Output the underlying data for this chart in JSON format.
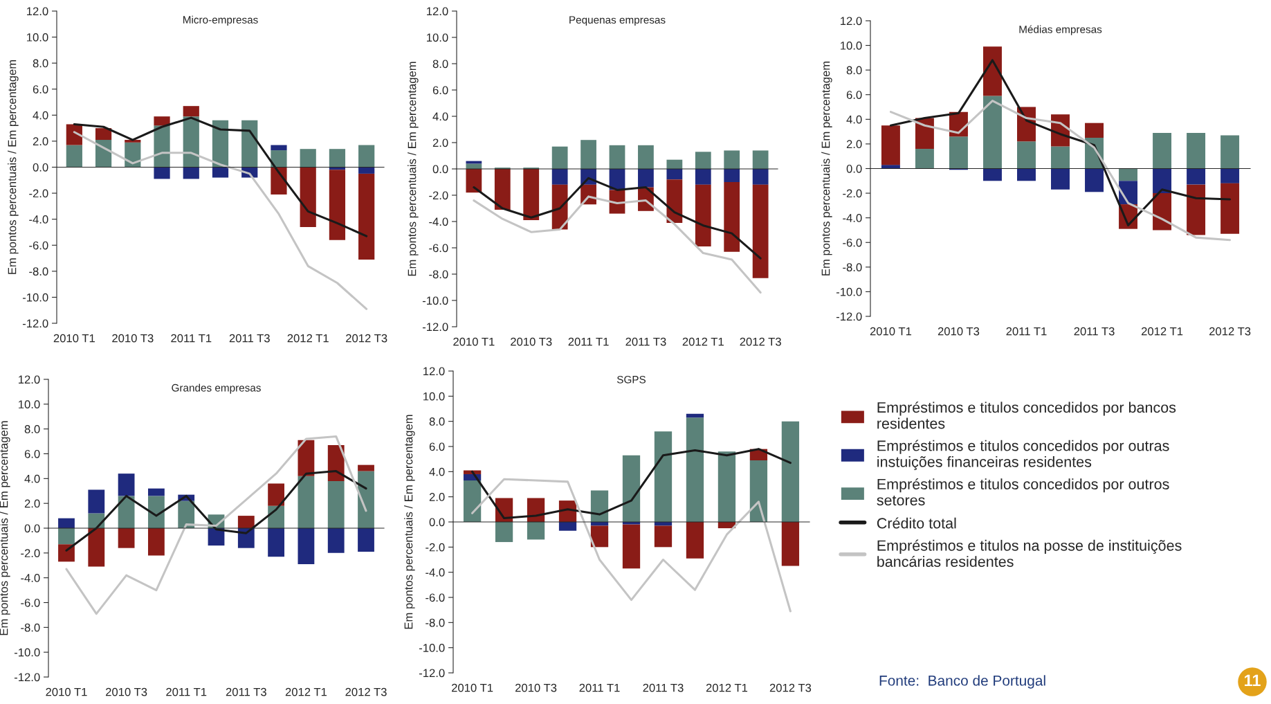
{
  "chart_data": [
    {
      "type": "bar",
      "stacked": true,
      "title": "Micro-empresas",
      "ylabel": "Em pontos percentuais / Em percentagem",
      "categories": [
        "2010 T1",
        null,
        "2010 T3",
        null,
        "2011 T1",
        null,
        "2011 T3",
        null,
        "2012 T1",
        null,
        "2012 T3"
      ],
      "ylim": [
        -12,
        12
      ],
      "yticks": [
        {
          "value": -12,
          "label": "-12.0"
        },
        {
          "value": -10,
          "label": "-10.0"
        },
        {
          "value": -8,
          "label": "-8.0"
        },
        {
          "value": -6,
          "label": "-6.0"
        },
        {
          "value": -4,
          "label": "-4.0"
        },
        {
          "value": -2,
          "label": "-2.0"
        },
        {
          "value": 0,
          "label": "0.0"
        },
        {
          "value": 2,
          "label": "2.0"
        },
        {
          "value": 4,
          "label": "4.0"
        },
        {
          "value": 6,
          "label": "6.0"
        },
        {
          "value": 8,
          "label": "8.0"
        },
        {
          "value": 10,
          "label": "10.0"
        },
        {
          "value": 12,
          "label": "12.0"
        }
      ],
      "series": [
        {
          "color": "#5b8279",
          "values": [
            1.7,
            2.1,
            1.9,
            3.2,
            3.9,
            3.6,
            3.6,
            1.3,
            1.4,
            1.4,
            1.7
          ]
        },
        {
          "color": "#1f2a7e",
          "values": [
            0,
            0,
            0,
            -0.9,
            -0.9,
            -0.8,
            -0.8,
            0.4,
            0,
            -0.2,
            -0.5
          ]
        },
        {
          "color": "#8a1c17",
          "values": [
            1.6,
            0.9,
            0.2,
            0.7,
            0.8,
            0,
            0,
            -2.1,
            -4.6,
            -5.4,
            -6.6
          ]
        },
        {
          "type": "line",
          "color": "#1a1a1a",
          "values": [
            3.3,
            3.1,
            2.1,
            3.1,
            3.8,
            2.9,
            2.8,
            -0.4,
            -3.4,
            -4.3,
            -5.3
          ]
        },
        {
          "type": "line",
          "color": "#c4c4c4",
          "values": [
            2.7,
            1.5,
            0.3,
            1.1,
            1.1,
            0.2,
            -0.5,
            -3.6,
            -7.6,
            -8.9,
            -10.9
          ]
        }
      ]
    },
    {
      "type": "bar",
      "stacked": true,
      "title": "Pequenas empresas",
      "ylabel": "Em pontos percentuais / Em percentagem",
      "categories": [
        "2010 T1",
        null,
        "2010 T3",
        null,
        "2011 T1",
        null,
        "2011 T3",
        null,
        "2012 T1",
        null,
        "2012 T3"
      ],
      "ylim": [
        -12,
        12
      ],
      "yticks": [
        {
          "value": -12,
          "label": "-12.0"
        },
        {
          "value": -10,
          "label": "-10.0"
        },
        {
          "value": -8,
          "label": "-8.0"
        },
        {
          "value": -6,
          "label": "-6.0"
        },
        {
          "value": -4,
          "label": "-4.0"
        },
        {
          "value": -2,
          "label": "-2.0"
        },
        {
          "value": 0,
          "label": "0.0"
        },
        {
          "value": 2,
          "label": "2.0"
        },
        {
          "value": 4,
          "label": "4.0"
        },
        {
          "value": 6,
          "label": "6.0"
        },
        {
          "value": 8,
          "label": "8.0"
        },
        {
          "value": 10,
          "label": "10.0"
        },
        {
          "value": 12,
          "label": "12.0"
        }
      ],
      "series": [
        {
          "color": "#5b8279",
          "values": [
            0.4,
            0.1,
            0.1,
            1.7,
            2.2,
            1.8,
            1.8,
            0.7,
            1.3,
            1.4,
            1.4
          ]
        },
        {
          "color": "#1f2a7e",
          "values": [
            0.2,
            0,
            0,
            -1.2,
            -1.2,
            -1.6,
            -1.4,
            -0.8,
            -1.2,
            -1.0,
            -1.2
          ]
        },
        {
          "color": "#8a1c17",
          "values": [
            -1.8,
            -3.1,
            -3.9,
            -3.4,
            -1.5,
            -1.8,
            -1.8,
            -3.3,
            -4.7,
            -5.3,
            -7.1
          ]
        },
        {
          "type": "line",
          "color": "#1a1a1a",
          "values": [
            -1.4,
            -3.0,
            -3.7,
            -3.0,
            -0.7,
            -1.6,
            -1.4,
            -3.3,
            -4.3,
            -4.9,
            -6.8
          ]
        },
        {
          "type": "line",
          "color": "#c4c4c4",
          "values": [
            -2.4,
            -3.8,
            -4.8,
            -4.6,
            -2.1,
            -2.6,
            -2.4,
            -4.2,
            -6.4,
            -6.9,
            -9.4
          ]
        }
      ]
    },
    {
      "type": "bar",
      "stacked": true,
      "title": "Médias empresas",
      "ylabel": "Em pontos percentuais / Em percentagem",
      "categories": [
        "2010 T1",
        null,
        "2010 T3",
        null,
        "2011 T1",
        null,
        "2011 T3",
        null,
        "2012 T1",
        null,
        "2012 T3"
      ],
      "ylim": [
        -12,
        12
      ],
      "yticks": [
        {
          "value": -12,
          "label": "-12.0"
        },
        {
          "value": -10,
          "label": "-10.0"
        },
        {
          "value": -8,
          "label": "-8.0"
        },
        {
          "value": -6,
          "label": "-6.0"
        },
        {
          "value": -4,
          "label": "-4.0"
        },
        {
          "value": -2,
          "label": "-2.0"
        },
        {
          "value": 0,
          "label": "0.0"
        },
        {
          "value": 2,
          "label": "2.0"
        },
        {
          "value": 4,
          "label": "4.0"
        },
        {
          "value": 6,
          "label": "6.0"
        },
        {
          "value": 8,
          "label": "8.0"
        },
        {
          "value": 10,
          "label": "10.0"
        },
        {
          "value": 12,
          "label": "12.0"
        }
      ],
      "series": [
        {
          "color": "#5b8279",
          "values": [
            0,
            1.6,
            2.6,
            5.9,
            2.2,
            1.8,
            2.5,
            -1.0,
            2.9,
            2.9,
            2.7
          ]
        },
        {
          "color": "#1f2a7e",
          "values": [
            0.3,
            0,
            -0.1,
            -1.0,
            -1.0,
            -1.7,
            -1.9,
            -1.9,
            -2.0,
            -1.3,
            -1.2
          ]
        },
        {
          "color": "#8a1c17",
          "values": [
            3.2,
            2.5,
            2.0,
            4.0,
            2.8,
            2.6,
            1.2,
            -2.0,
            -3.0,
            -4.1,
            -4.1
          ]
        },
        {
          "type": "line",
          "color": "#1a1a1a",
          "values": [
            3.5,
            4.1,
            4.5,
            8.8,
            3.9,
            2.8,
            1.9,
            -4.6,
            -1.7,
            -2.4,
            -2.5
          ]
        },
        {
          "type": "line",
          "color": "#c4c4c4",
          "values": [
            4.6,
            3.5,
            2.9,
            5.5,
            4.1,
            3.7,
            1.7,
            -2.8,
            -4.1,
            -5.6,
            -5.8
          ]
        }
      ]
    },
    {
      "type": "bar",
      "stacked": true,
      "title": "Grandes empresas",
      "ylabel": "Em pontos percentuais / Em percentagem",
      "categories": [
        "2010 T1",
        null,
        "2010 T3",
        null,
        "2011 T1",
        null,
        "2011 T3",
        null,
        "2012 T1",
        null,
        "2012 T3"
      ],
      "ylim": [
        -12,
        12
      ],
      "yticks": [
        {
          "value": -12,
          "label": "-12.0"
        },
        {
          "value": -10,
          "label": "-10.0"
        },
        {
          "value": -8,
          "label": "-8.0"
        },
        {
          "value": -6,
          "label": "-6.0"
        },
        {
          "value": -4,
          "label": "-4.0"
        },
        {
          "value": -2,
          "label": "-2.0"
        },
        {
          "value": 0,
          "label": "0.0"
        },
        {
          "value": 2,
          "label": "2.0"
        },
        {
          "value": 4,
          "label": "4.0"
        },
        {
          "value": 6,
          "label": "6.0"
        },
        {
          "value": 8,
          "label": "8.0"
        },
        {
          "value": 10,
          "label": "10.0"
        },
        {
          "value": 12,
          "label": "12.0"
        }
      ],
      "series": [
        {
          "color": "#5b8279",
          "values": [
            -1.3,
            1.2,
            2.6,
            2.6,
            2.2,
            1.1,
            null,
            1.8,
            4.2,
            3.8,
            4.6
          ]
        },
        {
          "color": "#1f2a7e",
          "values": [
            0.8,
            1.9,
            1.8,
            0.6,
            0.5,
            -1.4,
            -1.6,
            -2.3,
            -2.9,
            -2.0,
            -1.9
          ]
        },
        {
          "color": "#8a1c17",
          "values": [
            -1.4,
            -3.1,
            -1.6,
            -2.2,
            0,
            0,
            1.0,
            1.8,
            2.9,
            2.9,
            0.5
          ]
        },
        {
          "type": "line",
          "color": "#1a1a1a",
          "values": [
            -1.8,
            0.0,
            2.6,
            1.0,
            2.6,
            -0.1,
            -0.4,
            1.5,
            4.4,
            4.6,
            3.2
          ]
        },
        {
          "type": "line",
          "color": "#c4c4c4",
          "values": [
            -3.3,
            -6.9,
            -3.8,
            -5.0,
            0.3,
            0.2,
            2.3,
            4.4,
            7.2,
            7.4,
            1.4
          ]
        }
      ]
    },
    {
      "type": "bar",
      "stacked": true,
      "title": "SGPS",
      "ylabel": "Em pontos percentuais / Em percentagem",
      "legend": "right",
      "annotations": [
        "Fonte:  Banco de Portugal",
        "11"
      ],
      "categories": [
        "2010 T1",
        null,
        "2010 T3",
        null,
        "2011 T1",
        null,
        "2011 T3",
        null,
        "2012 T1",
        null,
        "2012 T3"
      ],
      "ylim": [
        -12,
        12
      ],
      "yticks": [
        {
          "value": -12,
          "label": "-12.0"
        },
        {
          "value": -10,
          "label": "-10.0"
        },
        {
          "value": -8,
          "label": "-8.0"
        },
        {
          "value": -6,
          "label": "-6.0"
        },
        {
          "value": -4,
          "label": "-4.0"
        },
        {
          "value": -2,
          "label": "-2.0"
        },
        {
          "value": 0,
          "label": "0.0"
        },
        {
          "value": 2,
          "label": "2.0"
        },
        {
          "value": 4,
          "label": "4.0"
        },
        {
          "value": 6,
          "label": "6.0"
        },
        {
          "value": 8,
          "label": "8.0"
        },
        {
          "value": 10,
          "label": "10.0"
        },
        {
          "value": 12,
          "label": "12.0"
        }
      ],
      "series": [
        {
          "name": "Empréstimos e titulos concedidos por outros\nsetores",
          "color": "#5b8279",
          "values": [
            3.3,
            -1.6,
            -1.4,
            0,
            2.5,
            5.3,
            7.2,
            8.3,
            5.6,
            4.9,
            8.0
          ]
        },
        {
          "name": "Empréstimos e titulos concedidos por outras\ninstuições financeiras residentes",
          "color": "#1f2a7e",
          "values": [
            0.5,
            0,
            0,
            -0.7,
            -0.3,
            -0.2,
            -0.3,
            0.3,
            0,
            0,
            0
          ]
        },
        {
          "name": "Empréstimos e titulos concedidos por bancos\nresidentes",
          "color": "#8a1c17",
          "values": [
            0.3,
            1.9,
            1.9,
            1.7,
            -1.7,
            -3.5,
            -1.7,
            -2.9,
            -0.5,
            0.9,
            -3.5
          ]
        },
        {
          "name": "Crédito total",
          "type": "line",
          "color": "#1a1a1a",
          "values": [
            4.0,
            0.3,
            0.5,
            1.0,
            0.6,
            1.7,
            5.3,
            5.7,
            5.3,
            5.8,
            4.7
          ]
        },
        {
          "name": "Empréstimos e titulos na posse de instituições\nbancárias residentes",
          "type": "line",
          "color": "#c4c4c4",
          "values": [
            0.7,
            3.4,
            3.3,
            3.2,
            -3.0,
            -6.2,
            -3.0,
            -5.4,
            -1.0,
            1.6,
            -7.1
          ]
        }
      ]
    }
  ]
}
